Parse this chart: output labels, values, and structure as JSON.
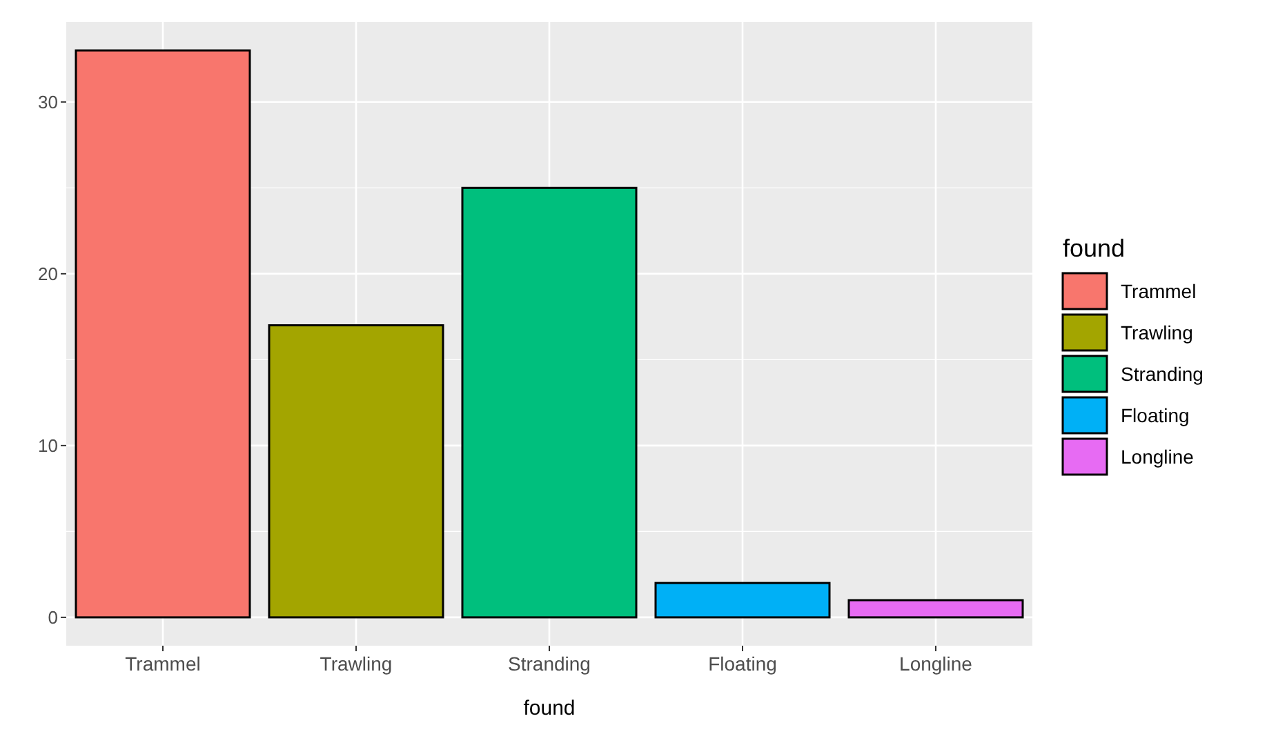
{
  "chart_data": {
    "type": "bar",
    "xlabel": "found",
    "legend_title": "found",
    "categories": [
      "Trammel",
      "Trawling",
      "Stranding",
      "Floating",
      "Longline"
    ],
    "series": [
      {
        "name": "Trammel",
        "color": "#f8766d",
        "values": [
          33,
          null,
          null,
          null,
          null
        ]
      },
      {
        "name": "Trawling",
        "color": "#a3a500",
        "values": [
          null,
          17,
          null,
          null,
          null
        ]
      },
      {
        "name": "Stranding",
        "color": "#00bf7d",
        "values": [
          null,
          null,
          25,
          null,
          null
        ]
      },
      {
        "name": "Floating",
        "color": "#00b0f6",
        "values": [
          null,
          null,
          null,
          2,
          null
        ]
      },
      {
        "name": "Longline",
        "color": "#e76bf3",
        "values": [
          null,
          null,
          null,
          null,
          1
        ]
      }
    ],
    "stacked": true,
    "ylim": [
      -1.65,
      34.65
    ],
    "yticks": [
      0,
      10,
      20,
      30
    ],
    "grid": true,
    "legend": "right"
  }
}
